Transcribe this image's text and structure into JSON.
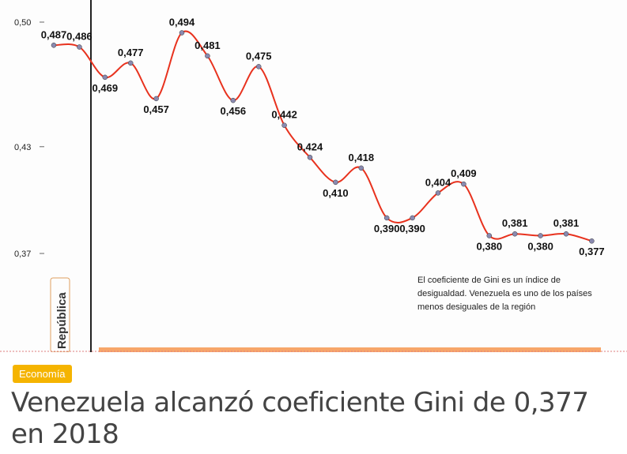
{
  "chart_data": {
    "type": "line",
    "categories": [
      null,
      null,
      null,
      null,
      null,
      null,
      null,
      null,
      null,
      null,
      null,
      null,
      null,
      null,
      null,
      null,
      null,
      null,
      null,
      null,
      null,
      null
    ],
    "series": [
      {
        "color": "#e8321e",
        "values": [
          0.487,
          0.486,
          0.469,
          0.477,
          0.457,
          0.494,
          0.481,
          0.456,
          0.475,
          0.442,
          0.424,
          0.41,
          0.418,
          0.39,
          0.39,
          0.404,
          0.409,
          0.38,
          0.381,
          0.38,
          0.381,
          0.377
        ],
        "value_labels": [
          "0,487",
          "0,486",
          "0,469",
          "0,477",
          "0,457",
          "0,494",
          "0,481",
          "0,456",
          "0,475",
          "0,442",
          "0,424",
          "0,410",
          "0,418",
          "0,390",
          "0,390",
          "0,404",
          "0,409",
          "0,380",
          "0,381",
          "0,380",
          "0,381",
          "0,377"
        ]
      }
    ],
    "ylim": [
      0.315,
      0.5
    ],
    "yticks": [
      {
        "value": 0.5,
        "label": "0,50"
      },
      {
        "value": 0.43,
        "label": "0,43"
      },
      {
        "value": 0.37,
        "label": "0,37"
      }
    ],
    "side_label": "República",
    "annotation": [
      "El coeficiente de Gini es un índice de",
      "desigualdad. Venezuela es uno de los países",
      "menos desiguales de la región"
    ]
  },
  "article": {
    "category": "Economía",
    "headline": "Venezuela alcanzó coeficiente Gini de 0,377 en 2018"
  }
}
